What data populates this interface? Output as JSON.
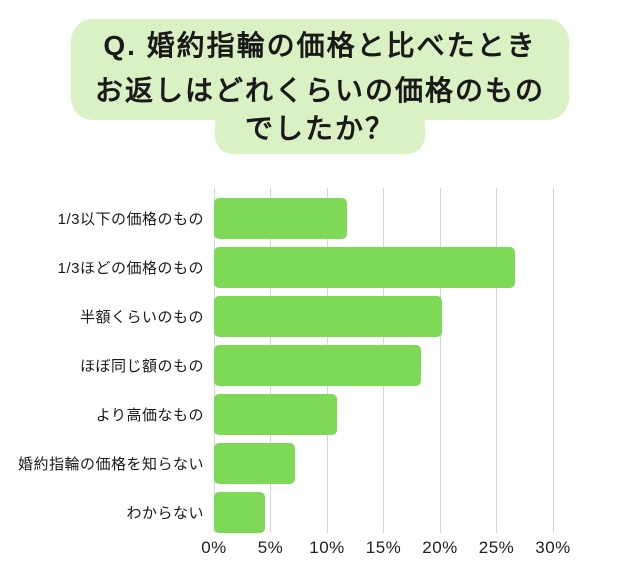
{
  "title": {
    "line1": "Q. 婚約指輪の価格と比べたとき",
    "line2": "お返しはどれくらいの価格のもの",
    "line3": "でしたか？"
  },
  "colors": {
    "bar": "#7ed957",
    "title_highlight": "#daf2c3",
    "gridline": "#d5d5d5",
    "text": "#1a1a1a"
  },
  "chart_data": {
    "type": "bar",
    "orientation": "horizontal",
    "title": "Q. 婚約指輪の価格と比べたとき お返しはどれくらいの価格のものでしたか？",
    "categories": [
      "1/3以下の価格のもの",
      "1/3ほどの価格のもの",
      "半額くらいのもの",
      "ほぼ同じ額のもの",
      "より高価なもの",
      "婚約指輪の価格を知らない",
      "わからない"
    ],
    "values": [
      11.8,
      26.6,
      20.2,
      18.3,
      10.9,
      7.2,
      4.5
    ],
    "unit": "%",
    "xlabel": "",
    "ylabel": "",
    "xlim": [
      0,
      30
    ],
    "x_ticks": [
      "0%",
      "5%",
      "10%",
      "15%",
      "20%",
      "25%",
      "30%"
    ],
    "grid": true,
    "legend": false
  }
}
